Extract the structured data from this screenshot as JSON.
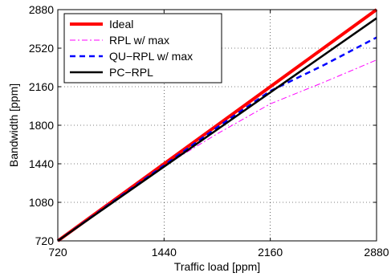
{
  "chart_data": {
    "type": "line",
    "xlabel": "Traffic load [ppm]",
    "ylabel": "Bandwidth [ppm]",
    "xlim": [
      720,
      2880
    ],
    "ylim": [
      720,
      2880
    ],
    "xticks": [
      720,
      1440,
      2160,
      2880
    ],
    "yticks": [
      720,
      1080,
      1440,
      1800,
      2160,
      2520,
      2880
    ],
    "grid": true,
    "legend_position": "top-left",
    "series": [
      {
        "name": "Ideal",
        "color": "#ff0000",
        "style": "solid-thick",
        "x": [
          720,
          2880
        ],
        "y": [
          720,
          2880
        ]
      },
      {
        "name": "RPL w/ max",
        "color": "#ff00ff",
        "style": "dash-dot",
        "x": [
          720,
          1440,
          1800,
          2160,
          2520,
          2880
        ],
        "y": [
          720,
          1420,
          1720,
          2000,
          2200,
          2410
        ]
      },
      {
        "name": "QU−RPL w/ max",
        "color": "#0000ff",
        "style": "dashed",
        "x": [
          720,
          1440,
          1800,
          2160,
          2520,
          2880
        ],
        "y": [
          720,
          1425,
          1780,
          2120,
          2360,
          2620
        ]
      },
      {
        "name": "PC−RPL",
        "color": "#000000",
        "style": "solid",
        "x": [
          720,
          2880
        ],
        "y": [
          720,
          2800
        ]
      }
    ]
  }
}
